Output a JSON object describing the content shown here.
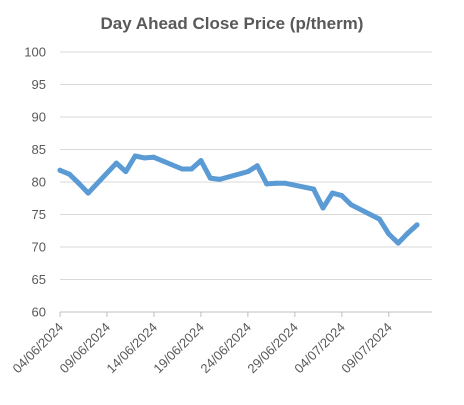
{
  "chart_data": {
    "type": "line",
    "title": "Day Ahead Close Price (p/therm)",
    "xlabel": "",
    "ylabel": "",
    "ylim": [
      60,
      100
    ],
    "y_ticks": [
      60,
      65,
      70,
      75,
      80,
      85,
      90,
      95,
      100
    ],
    "x_tick_labels": [
      "04/06/2024",
      "09/06/2024",
      "14/06/2024",
      "19/06/2024",
      "24/06/2024",
      "29/06/2024",
      "04/07/2024",
      "09/07/2024"
    ],
    "grid": "horizontal",
    "legend": "none",
    "colors": {
      "line": "#5B9BD5",
      "grid": "#D9D9D9",
      "axis": "#BFBFBF",
      "text": "#595959"
    },
    "series": [
      {
        "x": [
          "04/06/2024",
          "05/06/2024",
          "06/06/2024",
          "07/06/2024",
          "10/06/2024",
          "11/06/2024",
          "12/06/2024",
          "13/06/2024",
          "14/06/2024",
          "17/06/2024",
          "18/06/2024",
          "19/06/2024",
          "20/06/2024",
          "21/06/2024",
          "24/06/2024",
          "25/06/2024",
          "26/06/2024",
          "27/06/2024",
          "28/06/2024",
          "01/07/2024",
          "02/07/2024",
          "03/07/2024",
          "04/07/2024",
          "05/07/2024",
          "08/07/2024",
          "09/07/2024",
          "10/07/2024",
          "11/07/2024",
          "12/07/2024"
        ],
        "values": [
          81.8,
          81.2,
          79.8,
          78.3,
          82.9,
          81.6,
          84.0,
          83.7,
          83.8,
          82.0,
          82.0,
          83.3,
          80.6,
          80.4,
          81.6,
          82.5,
          79.7,
          79.8,
          79.8,
          78.9,
          76.0,
          78.3,
          77.9,
          76.5,
          74.3,
          72.0,
          70.6,
          72.1,
          73.4
        ]
      }
    ]
  }
}
